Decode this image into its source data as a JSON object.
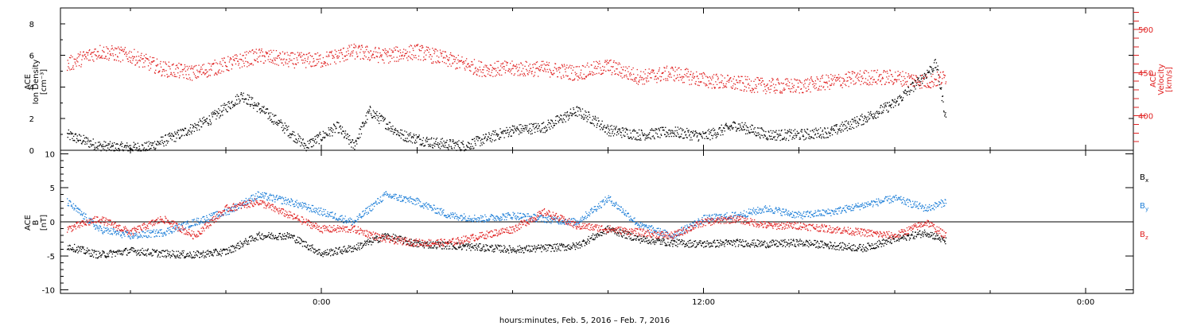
{
  "chart_data": [
    {
      "type": "scatter",
      "ylabel_lines": [
        "ACE",
        "Ion Density",
        "[cm⁻³]"
      ],
      "ylim": [
        0,
        9
      ],
      "yticks": [
        "0",
        "2",
        "4",
        "6",
        "8"
      ],
      "ylabel_right_lines": [
        "ACE",
        "Velocity",
        "[km/s]"
      ],
      "ylim_right": [
        360,
        525
      ],
      "yticks_right": [
        "400",
        "450",
        "500"
      ],
      "series": [
        {
          "axis": "left",
          "color": "#000000",
          "segments": [
            {
              "x0": -8.0,
              "x1": 6.0,
              "points": [
                [
                  -8.0,
                  1.0
                ],
                [
                  -7.0,
                  0.3
                ],
                [
                  -6.5,
                  0.2
                ],
                [
                  -5.5,
                  0.2
                ],
                [
                  -4.5,
                  1.0
                ],
                [
                  -3.5,
                  2.0
                ],
                [
                  -2.5,
                  3.5
                ],
                [
                  -1.5,
                  2.0
                ],
                [
                  -0.5,
                  0.3
                ],
                [
                  0.5,
                  1.5
                ],
                [
                  1.0,
                  0.3
                ],
                [
                  1.5,
                  2.5
                ],
                [
                  2.5,
                  1.0
                ],
                [
                  3.5,
                  0.5
                ],
                [
                  4.5,
                  0.3
                ],
                [
                  5.5,
                  1.0
                ],
                [
                  6.0,
                  1.3
                ]
              ]
            },
            {
              "x0": 6.0,
              "x1": 9.0,
              "points": [
                [
                  6.0,
                  1.3
                ],
                [
                  7.0,
                  1.5
                ],
                [
                  8.0,
                  2.5
                ],
                [
                  8.5,
                  2.0
                ],
                [
                  9.0,
                  1.3
                ]
              ]
            },
            {
              "x0": 9.0,
              "x1": 16.0,
              "points": [
                [
                  9.0,
                  1.3
                ],
                [
                  10.0,
                  1.0
                ],
                [
                  11.0,
                  1.2
                ],
                [
                  12.0,
                  0.9
                ],
                [
                  13.0,
                  1.6
                ],
                [
                  14.0,
                  1.0
                ],
                [
                  15.0,
                  1.0
                ],
                [
                  16.0,
                  1.2
                ]
              ]
            },
            {
              "x0": 16.0,
              "x1": 19.6,
              "points": [
                [
                  16.0,
                  1.2
                ],
                [
                  17.0,
                  2.0
                ],
                [
                  18.0,
                  3.0
                ],
                [
                  18.8,
                  4.5
                ],
                [
                  19.3,
                  5.5
                ],
                [
                  19.6,
                  2.0
                ]
              ]
            }
          ]
        },
        {
          "axis": "right",
          "color": "#e02020",
          "segments": [
            {
              "x0": -8.0,
              "x1": 6.0,
              "points": [
                [
                  -8.0,
                  460
                ],
                [
                  -7.0,
                  475
                ],
                [
                  -6.0,
                  470
                ],
                [
                  -5.0,
                  455
                ],
                [
                  -4.0,
                  450
                ],
                [
                  -3.0,
                  460
                ],
                [
                  -2.0,
                  470
                ],
                [
                  -1.0,
                  465
                ],
                [
                  0.0,
                  465
                ],
                [
                  1.0,
                  475
                ],
                [
                  2.0,
                  470
                ],
                [
                  3.0,
                  475
                ],
                [
                  4.0,
                  465
                ],
                [
                  5.0,
                  455
                ],
                [
                  6.0,
                  455
                ]
              ]
            },
            {
              "x0": 6.0,
              "x1": 9.0,
              "points": [
                [
                  6.0,
                  455
                ],
                [
                  7.0,
                  455
                ],
                [
                  8.0,
                  450
                ],
                [
                  9.0,
                  458
                ]
              ]
            },
            {
              "x0": 9.0,
              "x1": 16.0,
              "points": [
                [
                  9.0,
                  458
                ],
                [
                  10.0,
                  445
                ],
                [
                  11.0,
                  450
                ],
                [
                  12.0,
                  442
                ],
                [
                  13.0,
                  438
                ],
                [
                  14.0,
                  435
                ],
                [
                  15.0,
                  435
                ],
                [
                  16.0,
                  440
                ]
              ]
            },
            {
              "x0": 16.0,
              "x1": 19.6,
              "points": [
                [
                  16.0,
                  440
                ],
                [
                  17.0,
                  445
                ],
                [
                  18.0,
                  445
                ],
                [
                  19.0,
                  440
                ],
                [
                  19.6,
                  445
                ]
              ]
            }
          ]
        }
      ]
    },
    {
      "type": "scatter",
      "ylabel_lines": [
        "ACE",
        "B",
        "[nT]"
      ],
      "ylim": [
        -10.5,
        10.5
      ],
      "yticks": [
        "-10",
        "-5",
        "0",
        "5",
        "10"
      ],
      "zero_line": true,
      "legend": [
        {
          "label": "B",
          "sub": "x",
          "color": "#000000"
        },
        {
          "label": "B",
          "sub": "y",
          "color": "#1e7fd8"
        },
        {
          "label": "B",
          "sub": "z",
          "color": "#e02020"
        }
      ],
      "series": [
        {
          "color": "#000000",
          "points": [
            [
              -8.0,
              -3.5
            ],
            [
              -7.0,
              -4.8
            ],
            [
              -6.0,
              -4.2
            ],
            [
              -5.0,
              -4.6
            ],
            [
              -4.0,
              -4.8
            ],
            [
              -3.0,
              -4.3
            ],
            [
              -2.0,
              -2.0
            ],
            [
              -1.0,
              -2.0
            ],
            [
              0.0,
              -4.6
            ],
            [
              1.0,
              -3.8
            ],
            [
              2.0,
              -2.0
            ],
            [
              3.0,
              -3.2
            ],
            [
              4.0,
              -3.4
            ],
            [
              5.0,
              -3.7
            ],
            [
              6.0,
              -4.0
            ],
            [
              7.0,
              -3.8
            ],
            [
              8.0,
              -3.5
            ],
            [
              9.0,
              -1.0
            ],
            [
              10.0,
              -2.5
            ],
            [
              11.0,
              -3.0
            ],
            [
              12.0,
              -3.2
            ],
            [
              13.0,
              -3.0
            ],
            [
              14.0,
              -3.2
            ],
            [
              15.0,
              -3.0
            ],
            [
              16.0,
              -3.4
            ],
            [
              17.0,
              -3.8
            ],
            [
              18.0,
              -2.5
            ],
            [
              19.0,
              -1.5
            ],
            [
              19.6,
              -2.8
            ]
          ]
        },
        {
          "color": "#1e7fd8",
          "points": [
            [
              -8.0,
              3.0
            ],
            [
              -7.0,
              -1.0
            ],
            [
              -6.0,
              -2.0
            ],
            [
              -5.0,
              -1.5
            ],
            [
              -4.0,
              0.0
            ],
            [
              -3.0,
              1.5
            ],
            [
              -2.0,
              4.0
            ],
            [
              -1.0,
              3.0
            ],
            [
              0.0,
              1.5
            ],
            [
              1.0,
              0.0
            ],
            [
              2.0,
              4.0
            ],
            [
              3.0,
              3.0
            ],
            [
              4.0,
              1.0
            ],
            [
              5.0,
              0.5
            ],
            [
              6.0,
              1.0
            ],
            [
              7.0,
              0.5
            ],
            [
              8.0,
              0.0
            ],
            [
              9.0,
              3.5
            ],
            [
              10.0,
              -0.5
            ],
            [
              11.0,
              -2.0
            ],
            [
              12.0,
              0.5
            ],
            [
              13.0,
              1.0
            ],
            [
              14.0,
              2.0
            ],
            [
              15.0,
              1.0
            ],
            [
              16.0,
              1.5
            ],
            [
              17.0,
              2.5
            ],
            [
              18.0,
              3.5
            ],
            [
              19.0,
              2.0
            ],
            [
              19.6,
              3.0
            ]
          ]
        },
        {
          "color": "#e02020",
          "points": [
            [
              -8.0,
              -1.0
            ],
            [
              -7.0,
              0.5
            ],
            [
              -6.0,
              -1.5
            ],
            [
              -5.0,
              0.5
            ],
            [
              -4.0,
              -2.0
            ],
            [
              -3.0,
              2.0
            ],
            [
              -2.0,
              3.0
            ],
            [
              -1.0,
              1.0
            ],
            [
              0.0,
              -1.0
            ],
            [
              1.0,
              -1.0
            ],
            [
              2.0,
              -2.5
            ],
            [
              3.0,
              -3.0
            ],
            [
              4.0,
              -3.0
            ],
            [
              5.0,
              -2.0
            ],
            [
              6.0,
              -1.0
            ],
            [
              7.0,
              1.5
            ],
            [
              8.0,
              -0.5
            ],
            [
              9.0,
              -1.0
            ],
            [
              10.0,
              -1.5
            ],
            [
              11.0,
              -2.0
            ],
            [
              12.0,
              0.0
            ],
            [
              13.0,
              0.5
            ],
            [
              14.0,
              -0.5
            ],
            [
              15.0,
              -0.5
            ],
            [
              16.0,
              -1.0
            ],
            [
              17.0,
              -1.5
            ],
            [
              18.0,
              -2.0
            ],
            [
              19.0,
              0.0
            ],
            [
              19.6,
              -2.0
            ]
          ]
        }
      ]
    }
  ],
  "xaxis": {
    "units": "hours (0 = 00:00, Feb. 6, 2016)",
    "xlim": [
      -8.2,
      25.5
    ],
    "ticks": [
      {
        "hours": 0,
        "label": "0:00"
      },
      {
        "hours": 12,
        "label": "12:00"
      },
      {
        "hours": 24,
        "label": "0:00"
      }
    ],
    "title": "hours:minutes, Feb.  5, 2016 – Feb.  7, 2016"
  }
}
